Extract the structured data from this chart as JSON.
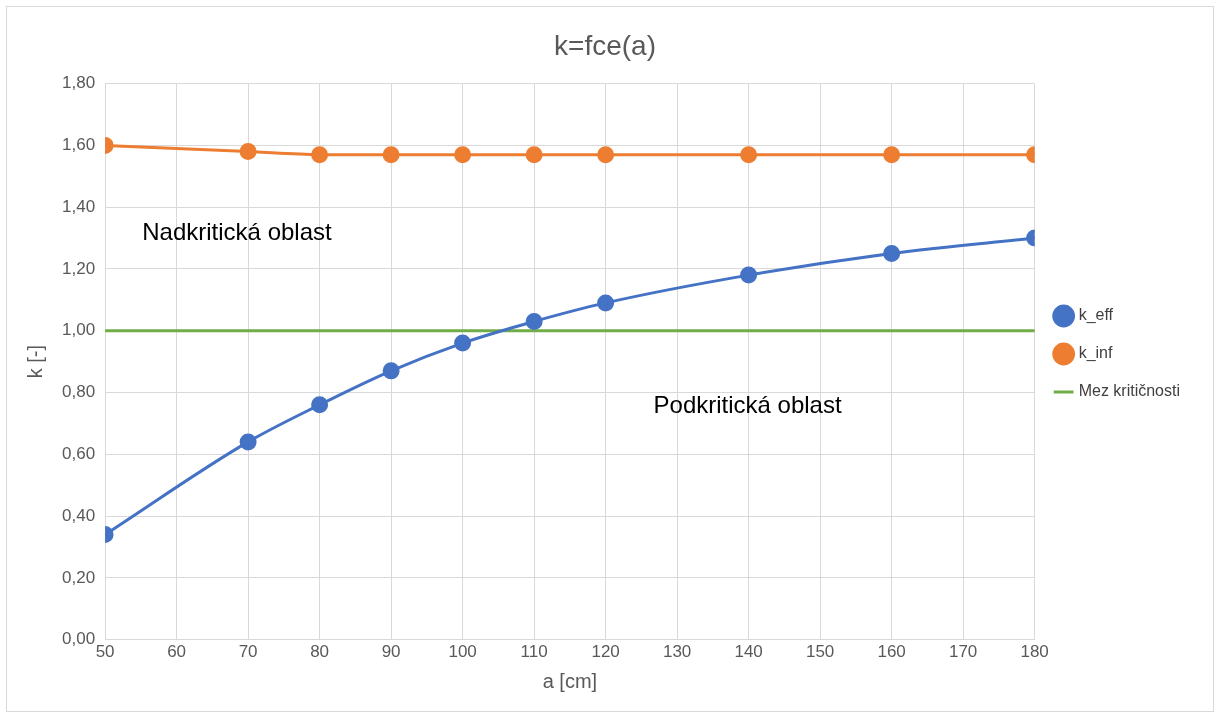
{
  "chart_data": {
    "type": "line",
    "title": "k=fce(a)",
    "xlabel": "a [cm]",
    "ylabel": "k [-]",
    "series": [
      {
        "name": "k_eff",
        "color": "#4472c4",
        "x": [
          50,
          70,
          80,
          90,
          100,
          110,
          120,
          140,
          160,
          180
        ],
        "values": [
          0.34,
          0.64,
          0.76,
          0.87,
          0.96,
          1.03,
          1.09,
          1.18,
          1.25,
          1.3
        ],
        "marker": "circle"
      },
      {
        "name": "k_inf",
        "color": "#ed7d31",
        "x": [
          50,
          70,
          80,
          90,
          100,
          110,
          120,
          140,
          160,
          180
        ],
        "values": [
          1.6,
          1.58,
          1.57,
          1.57,
          1.57,
          1.57,
          1.57,
          1.57,
          1.57,
          1.57
        ],
        "marker": "circle"
      },
      {
        "name": "Mez kritičnosti",
        "color": "#70ad47",
        "x": [
          50,
          180
        ],
        "values": [
          1.0,
          1.0
        ],
        "marker": "none"
      }
    ],
    "xlim": [
      50,
      180
    ],
    "xticks": [
      50,
      60,
      70,
      80,
      90,
      100,
      110,
      120,
      130,
      140,
      150,
      160,
      170,
      180
    ],
    "ylim": [
      0,
      1.8
    ],
    "yticks": [
      {
        "value": 0,
        "label": "0,00"
      },
      {
        "value": 0.2,
        "label": "0,20"
      },
      {
        "value": 0.4,
        "label": "0,40"
      },
      {
        "value": 0.6,
        "label": "0,60"
      },
      {
        "value": 0.8,
        "label": "0,80"
      },
      {
        "value": 1.0,
        "label": "1,00"
      },
      {
        "value": 1.2,
        "label": "1,20"
      },
      {
        "value": 1.4,
        "label": "1,40"
      },
      {
        "value": 1.6,
        "label": "1,60"
      },
      {
        "value": 1.8,
        "label": "1,80"
      }
    ],
    "annotations": [
      "Nadkritická oblast",
      "Podkritická oblast"
    ],
    "grid": true,
    "legend": "right"
  }
}
